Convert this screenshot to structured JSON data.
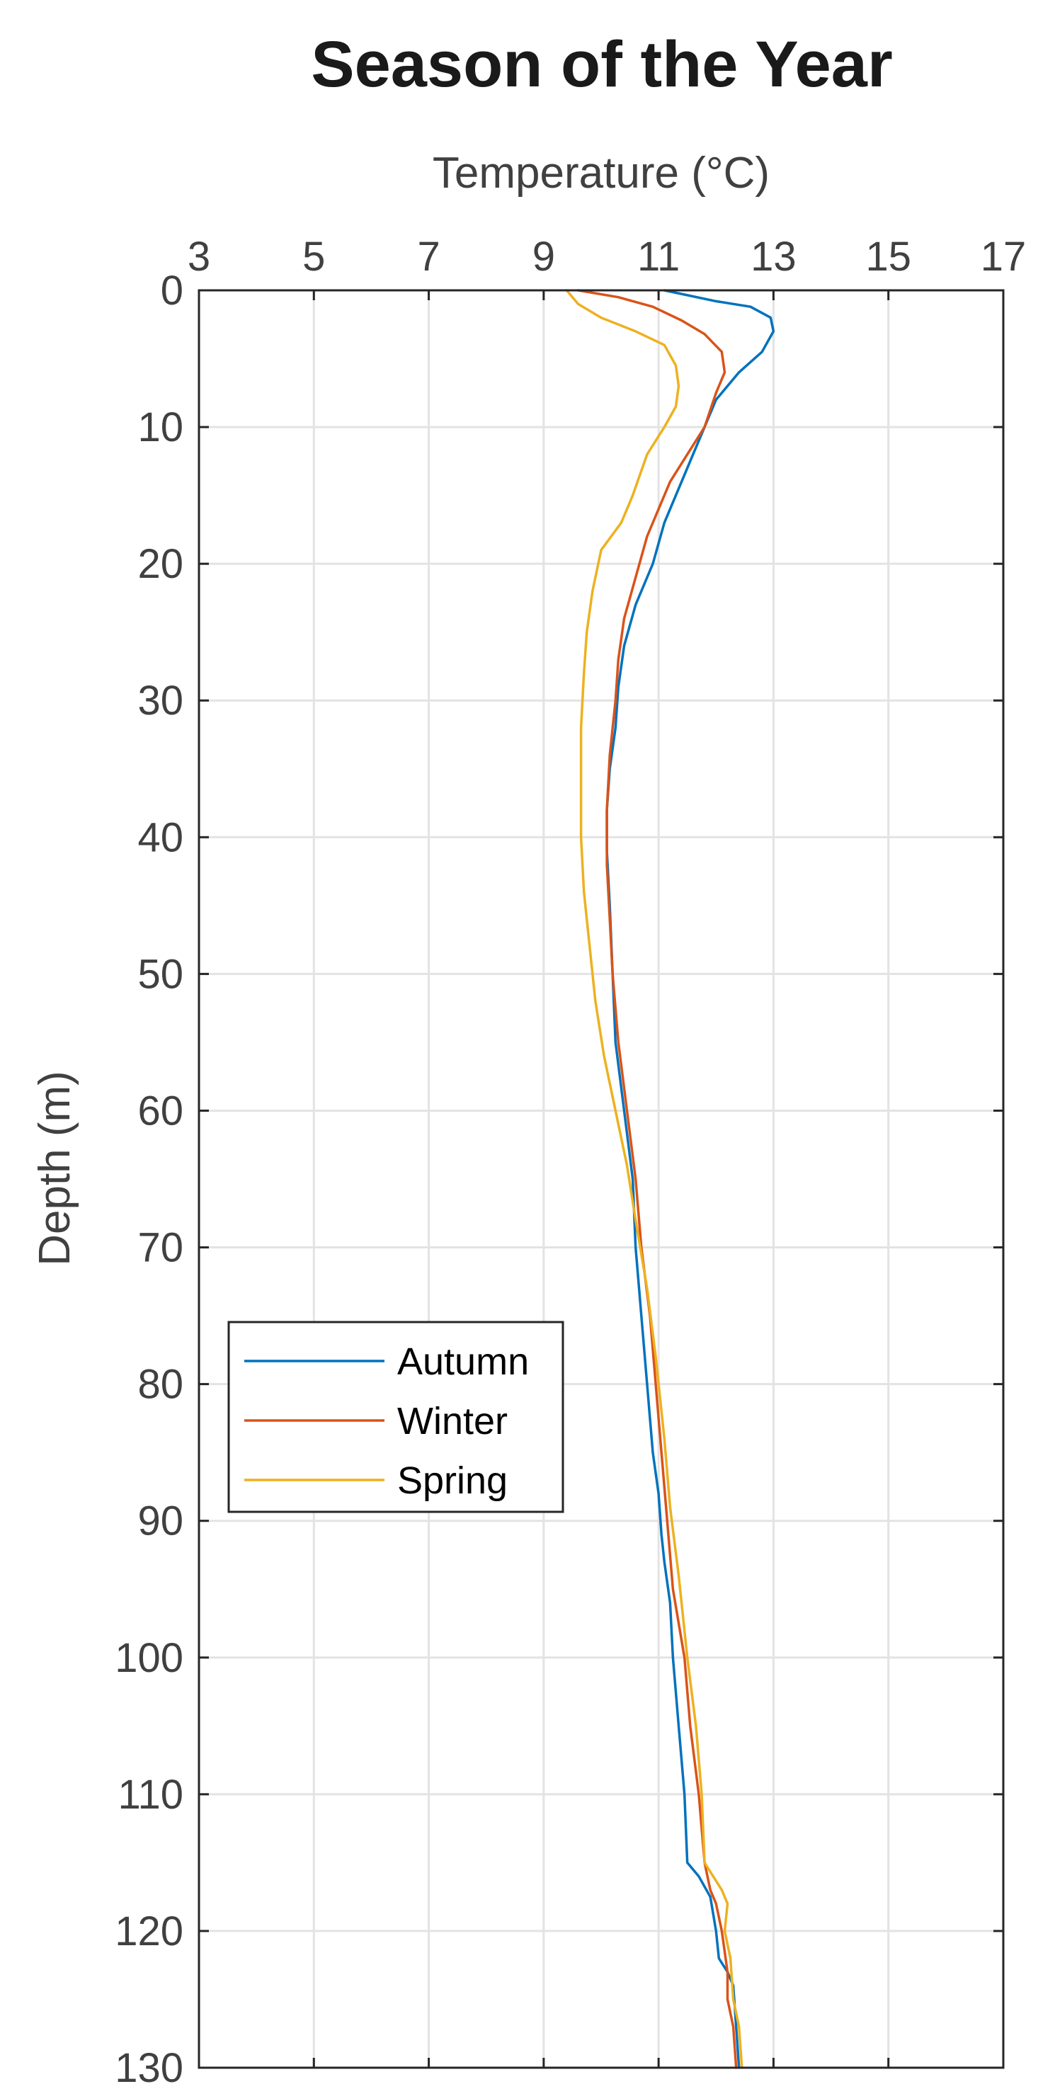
{
  "chart_data": {
    "type": "line",
    "title": "Season of the Year",
    "xlabel": "Temperature (°C)",
    "ylabel": "Depth (m)",
    "x_axis_position": "top",
    "y_reversed": true,
    "xlim": [
      3,
      17
    ],
    "ylim": [
      0,
      130
    ],
    "xticks": [
      3,
      5,
      7,
      9,
      11,
      13,
      15,
      17
    ],
    "yticks": [
      0,
      10,
      20,
      30,
      40,
      50,
      60,
      70,
      80,
      90,
      100,
      110,
      120,
      130
    ],
    "grid": true,
    "legend_position": "lower-left",
    "series": [
      {
        "name": "Autumn",
        "color": "#0072BD",
        "points": [
          [
            11.1,
            0
          ],
          [
            12,
            0.8
          ],
          [
            12.6,
            1.2
          ],
          [
            12.95,
            2
          ],
          [
            13,
            3
          ],
          [
            12.8,
            4.5
          ],
          [
            12.4,
            6
          ],
          [
            12.0,
            8
          ],
          [
            11.8,
            10
          ],
          [
            11.6,
            12
          ],
          [
            11.4,
            14
          ],
          [
            11.1,
            17
          ],
          [
            10.9,
            20
          ],
          [
            10.6,
            23
          ],
          [
            10.4,
            26
          ],
          [
            10.3,
            29
          ],
          [
            10.25,
            32
          ],
          [
            10.15,
            35
          ],
          [
            10.1,
            38
          ],
          [
            10.1,
            41
          ],
          [
            10.15,
            45
          ],
          [
            10.2,
            50
          ],
          [
            10.25,
            55
          ],
          [
            10.4,
            60
          ],
          [
            10.55,
            65
          ],
          [
            10.6,
            70
          ],
          [
            10.7,
            75
          ],
          [
            10.8,
            80
          ],
          [
            10.9,
            85
          ],
          [
            11.0,
            88
          ],
          [
            11.05,
            91
          ],
          [
            11.1,
            93
          ],
          [
            11.2,
            96
          ],
          [
            11.25,
            100
          ],
          [
            11.35,
            105
          ],
          [
            11.45,
            110
          ],
          [
            11.5,
            115
          ],
          [
            11.7,
            116
          ],
          [
            11.9,
            117.5
          ],
          [
            12.0,
            120
          ],
          [
            12.05,
            122
          ],
          [
            12.2,
            123
          ],
          [
            12.3,
            124
          ],
          [
            12.35,
            127
          ],
          [
            12.4,
            130
          ]
        ]
      },
      {
        "name": "Winter",
        "color": "#D95319",
        "points": [
          [
            9.6,
            0
          ],
          [
            10.3,
            0.5
          ],
          [
            10.9,
            1.2
          ],
          [
            11.4,
            2.2
          ],
          [
            11.8,
            3.2
          ],
          [
            12.1,
            4.5
          ],
          [
            12.15,
            6
          ],
          [
            12.0,
            7.5
          ],
          [
            11.8,
            10
          ],
          [
            11.5,
            12
          ],
          [
            11.2,
            14
          ],
          [
            11.0,
            16
          ],
          [
            10.8,
            18
          ],
          [
            10.6,
            21
          ],
          [
            10.4,
            24
          ],
          [
            10.3,
            27
          ],
          [
            10.25,
            30
          ],
          [
            10.15,
            34
          ],
          [
            10.1,
            38
          ],
          [
            10.1,
            42
          ],
          [
            10.15,
            46
          ],
          [
            10.2,
            50
          ],
          [
            10.3,
            55
          ],
          [
            10.45,
            60
          ],
          [
            10.6,
            65
          ],
          [
            10.7,
            70
          ],
          [
            10.85,
            75
          ],
          [
            10.95,
            80
          ],
          [
            11.05,
            85
          ],
          [
            11.15,
            90
          ],
          [
            11.25,
            95
          ],
          [
            11.45,
            100
          ],
          [
            11.55,
            105
          ],
          [
            11.7,
            110
          ],
          [
            11.8,
            115
          ],
          [
            11.9,
            117
          ],
          [
            12.0,
            118
          ],
          [
            12.1,
            120
          ],
          [
            12.2,
            123
          ],
          [
            12.2,
            125
          ],
          [
            12.3,
            127
          ],
          [
            12.35,
            130
          ]
        ]
      },
      {
        "name": "Spring",
        "color": "#EDB120",
        "points": [
          [
            9.4,
            0
          ],
          [
            9.6,
            1
          ],
          [
            10.0,
            2
          ],
          [
            10.6,
            3
          ],
          [
            11.1,
            4
          ],
          [
            11.3,
            5.5
          ],
          [
            11.35,
            7
          ],
          [
            11.3,
            8.5
          ],
          [
            11.1,
            10
          ],
          [
            10.8,
            12
          ],
          [
            10.55,
            15
          ],
          [
            10.35,
            17
          ],
          [
            10.0,
            19
          ],
          [
            9.85,
            22
          ],
          [
            9.75,
            25
          ],
          [
            9.7,
            28
          ],
          [
            9.65,
            32
          ],
          [
            9.65,
            36
          ],
          [
            9.65,
            40
          ],
          [
            9.7,
            44
          ],
          [
            9.8,
            48
          ],
          [
            9.9,
            52
          ],
          [
            10.05,
            56
          ],
          [
            10.25,
            60
          ],
          [
            10.45,
            64
          ],
          [
            10.6,
            68
          ],
          [
            10.8,
            73
          ],
          [
            10.95,
            78
          ],
          [
            11.1,
            84
          ],
          [
            11.2,
            89
          ],
          [
            11.35,
            94
          ],
          [
            11.5,
            100
          ],
          [
            11.65,
            105
          ],
          [
            11.75,
            110
          ],
          [
            11.8,
            115
          ],
          [
            11.95,
            116
          ],
          [
            12.1,
            117
          ],
          [
            12.2,
            118
          ],
          [
            12.15,
            120
          ],
          [
            12.25,
            122
          ],
          [
            12.3,
            125
          ],
          [
            12.4,
            127
          ],
          [
            12.45,
            130
          ]
        ]
      }
    ]
  }
}
